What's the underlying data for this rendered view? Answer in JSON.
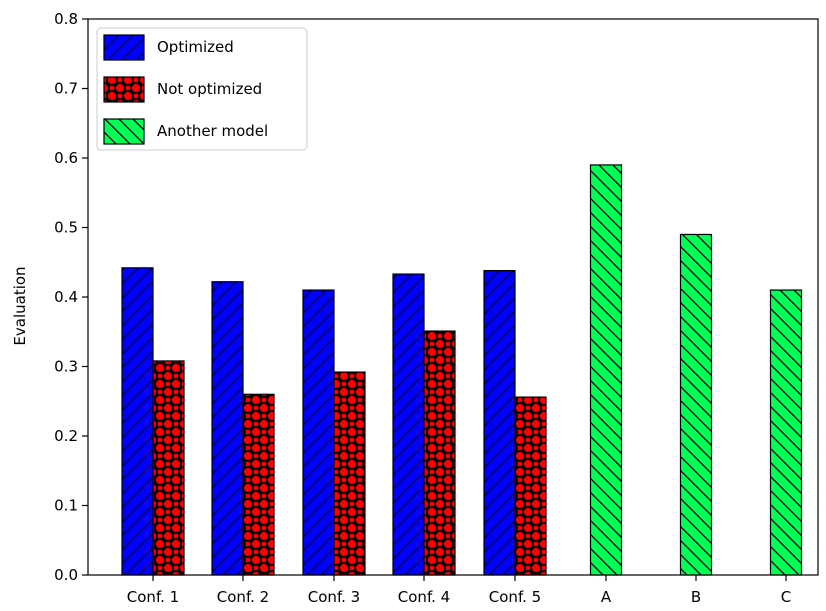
{
  "chart_data": {
    "type": "bar",
    "title": "",
    "xlabel": "",
    "ylabel": "Evaluation",
    "ylim": [
      0,
      0.8
    ],
    "yticks": [
      0.0,
      0.1,
      0.2,
      0.3,
      0.4,
      0.5,
      0.6,
      0.7,
      0.8
    ],
    "grid": false,
    "legend_position": "top-left",
    "categories": [
      "Conf. 1",
      "Conf. 2",
      "Conf. 3",
      "Conf. 4",
      "Conf. 5",
      "A",
      "B",
      "C"
    ],
    "series": [
      {
        "name": "Optimized",
        "color": "#0000ff",
        "hatch": "forward-diagonal",
        "values": [
          0.442,
          0.422,
          0.41,
          0.433,
          0.438,
          null,
          null,
          null
        ]
      },
      {
        "name": "Not optimized",
        "color": "#ff0000",
        "hatch": "circles",
        "values": [
          0.308,
          0.26,
          0.292,
          0.351,
          0.256,
          null,
          null,
          null
        ]
      },
      {
        "name": "Another model",
        "color": "#00ff55",
        "hatch": "back-diagonal",
        "values": [
          null,
          null,
          null,
          null,
          null,
          0.59,
          0.49,
          0.41
        ]
      }
    ]
  }
}
